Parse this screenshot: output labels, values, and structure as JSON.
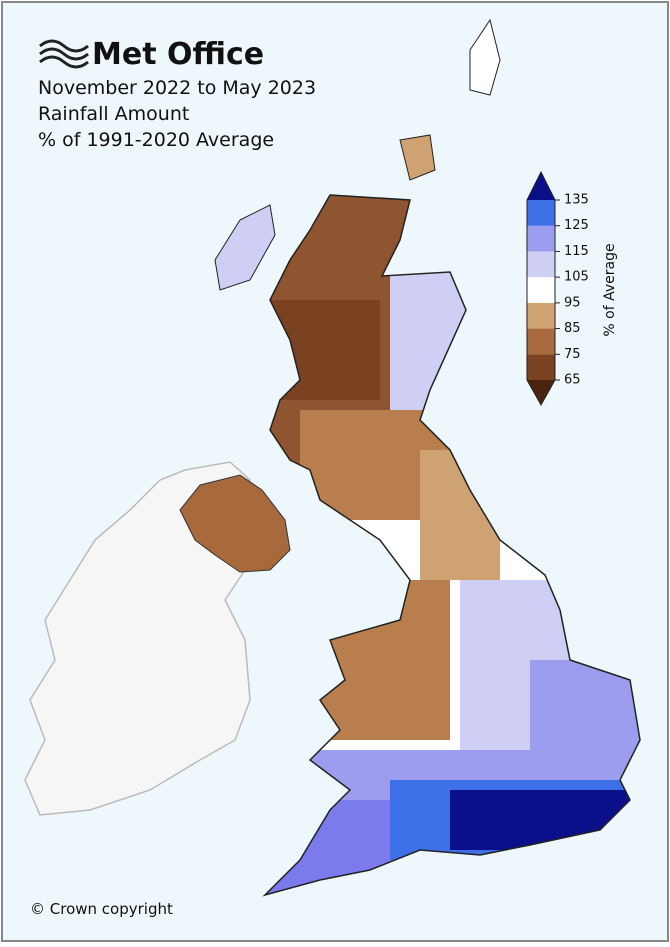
{
  "header": {
    "logo": "Met Office",
    "title_lines": [
      "November 2022 to May 2023",
      "Rainfall Amount",
      "% of 1991-2020 Average"
    ]
  },
  "legend": {
    "label": "% of Average",
    "ticks": [
      65,
      75,
      85,
      95,
      105,
      115,
      125,
      135
    ],
    "colors": [
      "#7a4220",
      "#a86a3c",
      "#cfa272",
      "#ffffff",
      "#cfcff5",
      "#9d9df0",
      "#3d6fe6"
    ],
    "under_color": "#4a2410",
    "over_color": "#0a0f8a"
  },
  "footer": {
    "copyright": "© Crown copyright"
  }
}
